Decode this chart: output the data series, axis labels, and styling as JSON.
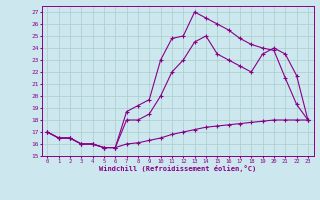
{
  "xlabel": "Windchill (Refroidissement éolien,°C)",
  "bg_color": "#cce8ee",
  "grid_color": "#aacccc",
  "line_color": "#880088",
  "xlim": [
    -0.5,
    23.5
  ],
  "ylim": [
    15,
    27.5
  ],
  "xticks": [
    0,
    1,
    2,
    3,
    4,
    5,
    6,
    7,
    8,
    9,
    10,
    11,
    12,
    13,
    14,
    15,
    16,
    17,
    18,
    19,
    20,
    21,
    22,
    23
  ],
  "yticks": [
    15,
    16,
    17,
    18,
    19,
    20,
    21,
    22,
    23,
    24,
    25,
    26,
    27
  ],
  "line1_x": [
    0,
    1,
    2,
    3,
    4,
    5,
    6,
    7,
    8,
    9,
    10,
    11,
    12,
    13,
    14,
    15,
    16,
    17,
    18,
    19,
    20,
    21,
    22,
    23
  ],
  "line1_y": [
    17.0,
    16.5,
    16.5,
    16.0,
    16.0,
    15.7,
    15.7,
    18.7,
    19.2,
    19.7,
    23.0,
    24.8,
    25.0,
    27.0,
    26.5,
    26.0,
    25.5,
    24.8,
    24.3,
    24.0,
    23.8,
    21.5,
    19.3,
    18.0
  ],
  "line2_x": [
    0,
    1,
    2,
    3,
    4,
    5,
    6,
    7,
    8,
    9,
    10,
    11,
    12,
    13,
    14,
    15,
    16,
    17,
    18,
    19,
    20,
    21,
    22,
    23
  ],
  "line2_y": [
    17.0,
    16.5,
    16.5,
    16.0,
    16.0,
    15.7,
    15.7,
    18.0,
    18.0,
    18.5,
    20.0,
    22.0,
    23.0,
    24.5,
    25.0,
    23.5,
    23.0,
    22.5,
    22.0,
    23.5,
    24.0,
    23.5,
    21.7,
    18.0
  ],
  "line3_x": [
    0,
    1,
    2,
    3,
    4,
    5,
    6,
    7,
    8,
    9,
    10,
    11,
    12,
    13,
    14,
    15,
    16,
    17,
    18,
    19,
    20,
    21,
    22,
    23
  ],
  "line3_y": [
    17.0,
    16.5,
    16.5,
    16.0,
    16.0,
    15.7,
    15.7,
    16.0,
    16.1,
    16.3,
    16.5,
    16.8,
    17.0,
    17.2,
    17.4,
    17.5,
    17.6,
    17.7,
    17.8,
    17.9,
    18.0,
    18.0,
    18.0,
    18.0
  ]
}
